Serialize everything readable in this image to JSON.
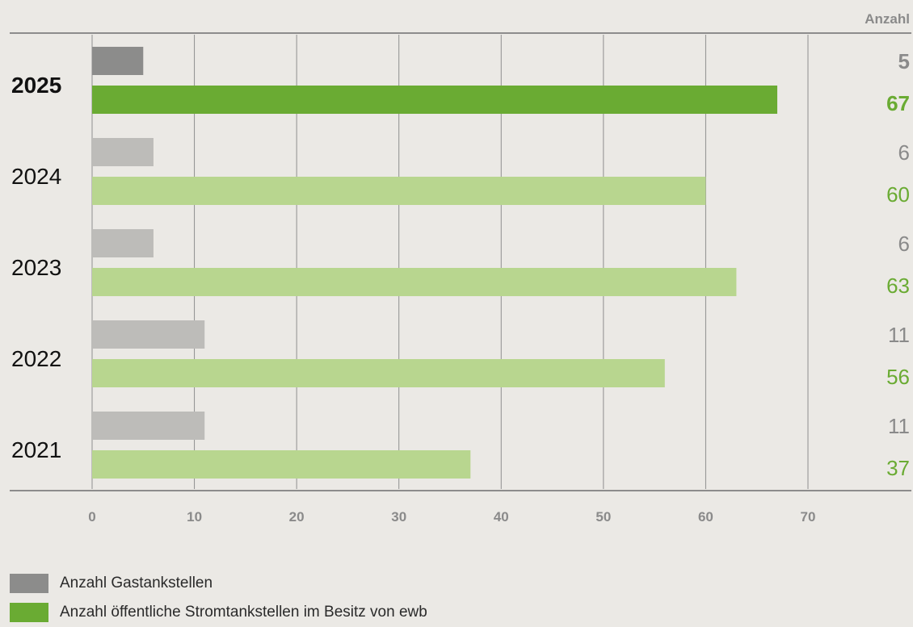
{
  "chart_data": {
    "type": "bar",
    "orientation": "horizontal",
    "value_column_header": "Anzahl",
    "categories": [
      "2025",
      "2024",
      "2023",
      "2022",
      "2021"
    ],
    "highlight_category": "2025",
    "series": [
      {
        "name": "Anzahl Gastankstellen",
        "values": [
          5,
          6,
          6,
          11,
          11
        ],
        "value_labels": [
          "5",
          "6",
          "6",
          "11",
          "11"
        ]
      },
      {
        "name": "Anzahl öffentliche Stromtankstellen im Besitz von ewb",
        "values": [
          67,
          60,
          63,
          56,
          37
        ],
        "value_labels": [
          "67",
          "60",
          "63",
          "56",
          "37"
        ]
      }
    ],
    "x_ticks": [
      "0",
      "10",
      "20",
      "30",
      "40",
      "50",
      "60",
      "70"
    ],
    "xlim": [
      0,
      70
    ],
    "grid": "vertical",
    "legend_position": "bottom-left",
    "colors": {
      "gas_highlight": "#8c8c8b",
      "gas": "#bdbcb9",
      "strom_highlight": "#6aab33",
      "strom": "#b8d68f",
      "gas_label": "#8a8a8a",
      "strom_label": "#6aab33",
      "grid": "#8f8f8f"
    }
  },
  "legend": [
    {
      "label": "Anzahl Gastankstellen",
      "color": "#8c8c8b"
    },
    {
      "label": "Anzahl öffentliche Stromtankstellen im Besitz von ewb",
      "color": "#6aab33"
    }
  ]
}
